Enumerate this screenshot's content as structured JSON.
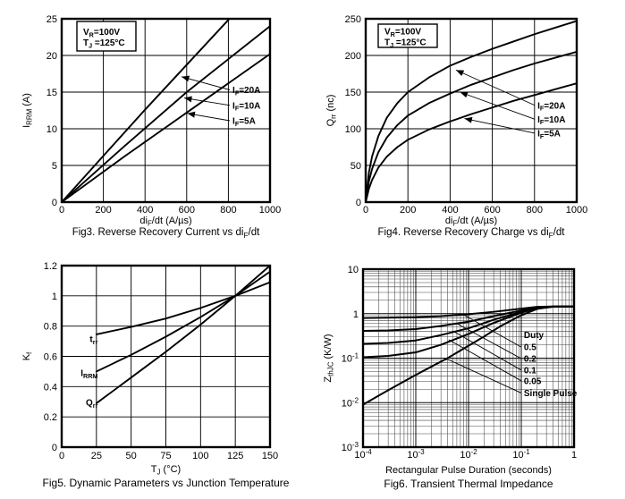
{
  "page": {
    "background": "#ffffff",
    "ink": "#000000"
  },
  "chart_data": [
    {
      "id": "fig3",
      "type": "line",
      "title": "Fig3. Reverse Recovery Current vs di_{F}/dt",
      "xlabel": "di_{F}/dt (A/µs)",
      "ylabel": "I_{RRM} (A)",
      "xscale": "linear",
      "yscale": "linear",
      "xlim": [
        0,
        1000
      ],
      "ylim": [
        0,
        25
      ],
      "xticks": [
        0,
        200,
        400,
        600,
        800,
        1000
      ],
      "xtick_labels": [
        "0",
        "200",
        "400",
        "600",
        "800",
        "1000"
      ],
      "yticks": [
        0,
        5,
        10,
        15,
        20,
        25
      ],
      "ytick_labels": [
        "0",
        "5",
        "10",
        "15",
        "20",
        "25"
      ],
      "grid": true,
      "conditions": [
        "V_{R}=100V",
        "T_{J} =125°C"
      ],
      "series": [
        {
          "name": "I_{F}=20A",
          "points": [
            [
              0,
              0
            ],
            [
              400,
              12.6
            ],
            [
              805,
              25
            ]
          ]
        },
        {
          "name": "I_{F}=10A",
          "points": [
            [
              0,
              0
            ],
            [
              300,
              7.6
            ],
            [
              600,
              15
            ],
            [
              1000,
              24
            ]
          ]
        },
        {
          "name": "I_{F}=5A",
          "points": [
            [
              0,
              0
            ],
            [
              300,
              6.2
            ],
            [
              600,
              12.2
            ],
            [
              1000,
              20.2
            ]
          ]
        }
      ],
      "labels": [
        {
          "text": "I_{F}=20A",
          "x": 820,
          "y": 15.3,
          "anchor": "start",
          "leader": [
            575,
            17.1
          ],
          "arrow": true
        },
        {
          "text": "I_{F}=10A",
          "x": 820,
          "y": 13.2,
          "anchor": "start",
          "leader": [
            588,
            14.2
          ],
          "arrow": true
        },
        {
          "text": "I_{F}=5A",
          "x": 820,
          "y": 11.1,
          "anchor": "start",
          "leader": [
            603,
            12.1
          ],
          "arrow": true
        }
      ]
    },
    {
      "id": "fig4",
      "type": "line",
      "title": "Fig4. Reverse Recovery Charge vs di_{F}/dt",
      "xlabel": "di_{F}/dt (A/µs)",
      "ylabel": "Q_{rr} (nc)",
      "xscale": "linear",
      "yscale": "linear",
      "xlim": [
        0,
        1000
      ],
      "ylim": [
        0,
        250
      ],
      "xticks": [
        0,
        200,
        400,
        600,
        800,
        1000
      ],
      "xtick_labels": [
        "0",
        "200",
        "400",
        "600",
        "800",
        "1000"
      ],
      "yticks": [
        0,
        50,
        100,
        150,
        200,
        250
      ],
      "ytick_labels": [
        "0",
        "50",
        "100",
        "150",
        "200",
        "250"
      ],
      "grid": true,
      "conditions": [
        "V_{R}=100V",
        "T_{J} =125°C"
      ],
      "series": [
        {
          "name": "I_{F}=20A",
          "points": [
            [
              0,
              0
            ],
            [
              15,
              40
            ],
            [
              30,
              62
            ],
            [
              60,
              90
            ],
            [
              100,
              115
            ],
            [
              150,
              135
            ],
            [
              200,
              150
            ],
            [
              300,
              170
            ],
            [
              400,
              186
            ],
            [
              500,
              198
            ],
            [
              600,
              209
            ],
            [
              700,
              219
            ],
            [
              800,
              229
            ],
            [
              900,
              238
            ],
            [
              1000,
              247
            ]
          ]
        },
        {
          "name": "I_{F}=10A",
          "points": [
            [
              0,
              0
            ],
            [
              15,
              28
            ],
            [
              30,
              45
            ],
            [
              60,
              68
            ],
            [
              100,
              88
            ],
            [
              150,
              105
            ],
            [
              200,
              118
            ],
            [
              300,
              135
            ],
            [
              400,
              148
            ],
            [
              500,
              160
            ],
            [
              600,
              170
            ],
            [
              700,
              180
            ],
            [
              800,
              189
            ],
            [
              900,
              197
            ],
            [
              1000,
              205
            ]
          ]
        },
        {
          "name": "I_{F}=5A",
          "points": [
            [
              0,
              0
            ],
            [
              15,
              18
            ],
            [
              30,
              30
            ],
            [
              60,
              47
            ],
            [
              100,
              62
            ],
            [
              150,
              75
            ],
            [
              200,
              85
            ],
            [
              300,
              99
            ],
            [
              400,
              110
            ],
            [
              500,
              120
            ],
            [
              600,
              129
            ],
            [
              700,
              138
            ],
            [
              800,
              146
            ],
            [
              900,
              154
            ],
            [
              1000,
              162
            ]
          ]
        }
      ],
      "labels": [
        {
          "text": "I_{F}=20A",
          "x": 814,
          "y": 132,
          "anchor": "start",
          "leader": [
            428,
            180
          ],
          "arrow": true
        },
        {
          "text": "I_{F}=10A",
          "x": 814,
          "y": 113,
          "anchor": "start",
          "leader": [
            447,
            150
          ],
          "arrow": true
        },
        {
          "text": "I_{F}=5A",
          "x": 814,
          "y": 94,
          "anchor": "start",
          "leader": [
            468,
            114
          ],
          "arrow": true
        }
      ]
    },
    {
      "id": "fig5",
      "type": "line",
      "title": "Fig5. Dynamic Parameters vs Junction Temperature",
      "xlabel": "T_{J} (°C)",
      "ylabel": "K_{f}",
      "xscale": "linear",
      "yscale": "linear",
      "xlim": [
        0,
        150
      ],
      "ylim": [
        0,
        1.2
      ],
      "xticks": [
        0,
        25,
        50,
        75,
        100,
        125,
        150
      ],
      "xtick_labels": [
        "0",
        "25",
        "50",
        "75",
        "100",
        "125",
        "150"
      ],
      "yticks": [
        0,
        0.2,
        0.4,
        0.6,
        0.8,
        1,
        1.2
      ],
      "ytick_labels": [
        "0",
        "0.2",
        "0.4",
        "0.6",
        "0.8",
        "1",
        "1.2"
      ],
      "grid": true,
      "series": [
        {
          "name": "t_{rr}",
          "points": [
            [
              25,
              0.745
            ],
            [
              50,
              0.795
            ],
            [
              75,
              0.85
            ],
            [
              100,
              0.92
            ],
            [
              125,
              1.0
            ],
            [
              150,
              1.09
            ]
          ]
        },
        {
          "name": "I_{RRM}",
          "points": [
            [
              25,
              0.5
            ],
            [
              50,
              0.61
            ],
            [
              75,
              0.73
            ],
            [
              100,
              0.86
            ],
            [
              125,
              1.0
            ],
            [
              150,
              1.16
            ]
          ]
        },
        {
          "name": "Q_{rr}",
          "points": [
            [
              25,
              0.29
            ],
            [
              50,
              0.46
            ],
            [
              75,
              0.63
            ],
            [
              100,
              0.81
            ],
            [
              125,
              1.0
            ],
            [
              150,
              1.2
            ]
          ]
        }
      ],
      "labels": [
        {
          "text": "t_{rr}",
          "x": 26,
          "y": 0.715,
          "anchor": "end"
        },
        {
          "text": "I_{RRM}",
          "x": 26,
          "y": 0.49,
          "anchor": "end"
        },
        {
          "text": "Q_{rr}",
          "x": 26,
          "y": 0.295,
          "anchor": "end"
        }
      ]
    },
    {
      "id": "fig6",
      "type": "line",
      "title": "Fig6. Transient Thermal Impedance",
      "xlabel": "Rectangular Pulse Duration (seconds)",
      "ylabel": "Z_{thJC} (K/W)",
      "xscale": "log",
      "yscale": "log",
      "xlim": [
        0.0001,
        1
      ],
      "ylim": [
        0.001,
        10
      ],
      "xticks": [
        0.0001,
        0.001,
        0.01,
        0.1,
        1
      ],
      "xtick_labels": [
        "10^{-4}",
        "10^{-3}",
        "10^{-2}",
        "10^{-1}",
        "1"
      ],
      "yticks": [
        0.001,
        0.01,
        0.1,
        1,
        10
      ],
      "ytick_labels": [
        "10^{-3}",
        "10^{-2}",
        "10^{-1}",
        "1",
        "10"
      ],
      "grid": true,
      "series": [
        {
          "name": "0.5",
          "points": [
            [
              0.0001,
              0.8
            ],
            [
              0.0003,
              0.81
            ],
            [
              0.001,
              0.83
            ],
            [
              0.003,
              0.88
            ],
            [
              0.01,
              0.97
            ],
            [
              0.03,
              1.1
            ],
            [
              0.1,
              1.3
            ],
            [
              0.2,
              1.42
            ],
            [
              0.4,
              1.45
            ],
            [
              1,
              1.45
            ]
          ]
        },
        {
          "name": "0.2",
          "points": [
            [
              0.0001,
              0.41
            ],
            [
              0.0003,
              0.42
            ],
            [
              0.001,
              0.45
            ],
            [
              0.003,
              0.53
            ],
            [
              0.01,
              0.66
            ],
            [
              0.03,
              0.88
            ],
            [
              0.1,
              1.18
            ],
            [
              0.2,
              1.38
            ],
            [
              0.4,
              1.45
            ],
            [
              1,
              1.45
            ]
          ]
        },
        {
          "name": "0.1",
          "points": [
            [
              0.0001,
              0.21
            ],
            [
              0.0003,
              0.22
            ],
            [
              0.001,
              0.25
            ],
            [
              0.003,
              0.33
            ],
            [
              0.01,
              0.47
            ],
            [
              0.03,
              0.73
            ],
            [
              0.1,
              1.1
            ],
            [
              0.2,
              1.35
            ],
            [
              0.4,
              1.44
            ],
            [
              1,
              1.45
            ]
          ]
        },
        {
          "name": "0.05",
          "points": [
            [
              0.0001,
              0.105
            ],
            [
              0.0003,
              0.112
            ],
            [
              0.001,
              0.135
            ],
            [
              0.003,
              0.2
            ],
            [
              0.01,
              0.35
            ],
            [
              0.03,
              0.62
            ],
            [
              0.1,
              1.05
            ],
            [
              0.2,
              1.33
            ],
            [
              0.4,
              1.44
            ],
            [
              1,
              1.45
            ]
          ]
        },
        {
          "name": "Single Pulse",
          "points": [
            [
              0.0001,
              0.009
            ],
            [
              0.0002,
              0.0145
            ],
            [
              0.0004,
              0.023
            ],
            [
              0.001,
              0.042
            ],
            [
              0.002,
              0.065
            ],
            [
              0.004,
              0.1
            ],
            [
              0.01,
              0.19
            ],
            [
              0.02,
              0.31
            ],
            [
              0.04,
              0.52
            ],
            [
              0.1,
              0.92
            ],
            [
              0.2,
              1.28
            ],
            [
              0.4,
              1.43
            ],
            [
              1,
              1.45
            ]
          ]
        }
      ],
      "labels": [
        {
          "text": "Duty",
          "x": 0.112,
          "y": 0.33,
          "anchor": "start"
        },
        {
          "text": "0.5",
          "x": 0.112,
          "y": 0.178,
          "anchor": "start",
          "leader": [
            0.008,
            0.95
          ]
        },
        {
          "text": "0.2",
          "x": 0.112,
          "y": 0.098,
          "anchor": "start",
          "leader": [
            0.006,
            0.6
          ]
        },
        {
          "text": "0.1",
          "x": 0.112,
          "y": 0.054,
          "anchor": "start",
          "leader": [
            0.005,
            0.41
          ]
        },
        {
          "text": "0.05",
          "x": 0.112,
          "y": 0.031,
          "anchor": "start",
          "leader": [
            0.0042,
            0.26
          ]
        },
        {
          "text": "Single Pulse",
          "x": 0.112,
          "y": 0.0165,
          "anchor": "start",
          "leader": [
            0.0036,
            0.1
          ]
        }
      ]
    }
  ]
}
